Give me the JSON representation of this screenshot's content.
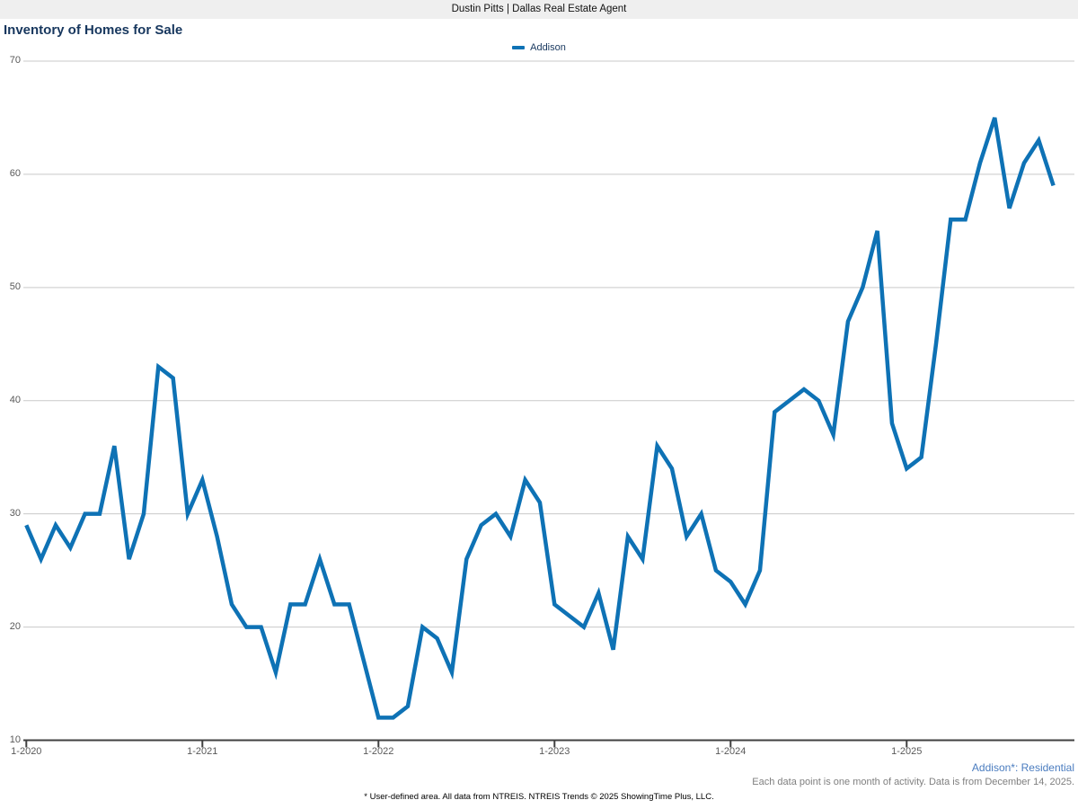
{
  "header": {
    "title": "Dustin Pitts | Dallas Real Estate Agent"
  },
  "chart": {
    "title": "Inventory of Homes for Sale"
  },
  "legend": {
    "label": "Addison",
    "swatch_icon": "line-swatch-icon"
  },
  "footer": {
    "series_note": "Addison*: Residential",
    "data_note": "Each data point is one month of activity. Data is from December 14, 2025.",
    "disclaimer": "* User-defined area. All data from NTREIS. NTREIS Trends © 2025 ShowingTime Plus, LLC."
  },
  "colors": {
    "line": "#0e72b5",
    "title": "#17375e",
    "header_band_bg": "#efefef",
    "gridline": "#c9c9c9",
    "axis": "#404040",
    "tick_label": "#595959",
    "series_note": "#4a7cbf",
    "data_note": "#7f7f7f"
  },
  "chart_data": {
    "type": "line",
    "title": "Inventory of Homes for Sale",
    "x_start": "2020-01",
    "x_step": "1 month",
    "x_tick_labels": [
      "1-2020",
      "1-2021",
      "1-2022",
      "1-2023",
      "1-2024",
      "1-2025"
    ],
    "x_tick_month_indices": [
      0,
      12,
      24,
      36,
      48,
      60
    ],
    "y_ticks": [
      10,
      20,
      30,
      40,
      50,
      60,
      70
    ],
    "ylim": [
      10,
      70
    ],
    "grid": "horizontal",
    "legend_position": "top-center",
    "series": [
      {
        "name": "Addison",
        "months": [
          "2020-01",
          "2020-02",
          "2020-03",
          "2020-04",
          "2020-05",
          "2020-06",
          "2020-07",
          "2020-08",
          "2020-09",
          "2020-10",
          "2020-11",
          "2020-12",
          "2021-01",
          "2021-02",
          "2021-03",
          "2021-04",
          "2021-05",
          "2021-06",
          "2021-07",
          "2021-08",
          "2021-09",
          "2021-10",
          "2021-11",
          "2021-12",
          "2022-01",
          "2022-02",
          "2022-03",
          "2022-04",
          "2022-05",
          "2022-06",
          "2022-07",
          "2022-08",
          "2022-09",
          "2022-10",
          "2022-11",
          "2022-12",
          "2023-01",
          "2023-02",
          "2023-03",
          "2023-04",
          "2023-05",
          "2023-06",
          "2023-07",
          "2023-08",
          "2023-09",
          "2023-10",
          "2023-11",
          "2023-12",
          "2024-01",
          "2024-02",
          "2024-03",
          "2024-04",
          "2024-05",
          "2024-06",
          "2024-07",
          "2024-08",
          "2024-09",
          "2024-10",
          "2024-11",
          "2024-12",
          "2025-01",
          "2025-02",
          "2025-03",
          "2025-04",
          "2025-05",
          "2025-06",
          "2025-07",
          "2025-08",
          "2025-09",
          "2025-10",
          "2025-11"
        ],
        "values": [
          29,
          26,
          29,
          27,
          30,
          30,
          36,
          26,
          30,
          43,
          42,
          30,
          33,
          28,
          22,
          20,
          20,
          16,
          22,
          22,
          26,
          22,
          22,
          17,
          12,
          12,
          13,
          20,
          19,
          16,
          26,
          29,
          30,
          28,
          33,
          31,
          22,
          21,
          20,
          23,
          18,
          28,
          26,
          36,
          34,
          28,
          30,
          25,
          24,
          22,
          25,
          39,
          40,
          41,
          40,
          37,
          47,
          50,
          55,
          38,
          34,
          35,
          45,
          56,
          56,
          61,
          65,
          57,
          61,
          63,
          59
        ]
      }
    ]
  }
}
